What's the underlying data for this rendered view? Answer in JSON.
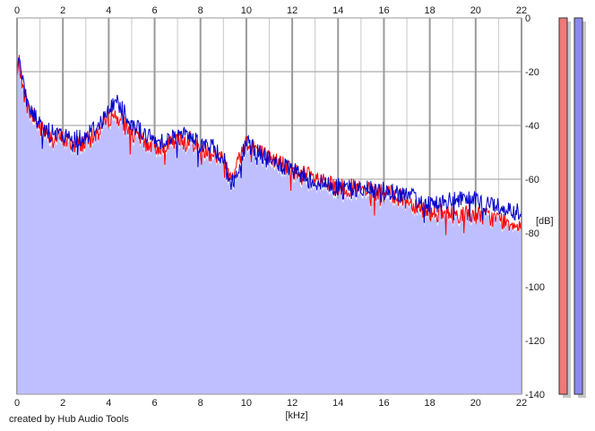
{
  "credit": "created by Hub Audio Tools",
  "chart_data": {
    "type": "line",
    "title": "",
    "xlabel": "[kHz]",
    "ylabel": "[dB]",
    "xlim": [
      0,
      22
    ],
    "ylim": [
      -140,
      0
    ],
    "xticks": [
      0,
      2,
      4,
      6,
      8,
      10,
      12,
      14,
      16,
      18,
      20,
      22
    ],
    "yticks": [
      0,
      -20,
      -40,
      -60,
      -80,
      -100,
      -120,
      -140
    ],
    "ytick_labels": [
      "0",
      "-20",
      "-40",
      "-60",
      "-80",
      "-100",
      "-120",
      "-140"
    ],
    "grid": true,
    "colors": {
      "background": "#ffffff",
      "grid_major": "#9a9a9a",
      "grid_minor": "#c8c8c8",
      "fill": "#bfbfff",
      "series_a": "#ff0000",
      "series_b": "#0000cc",
      "meter_a": "#ee7a7a",
      "meter_b": "#8a8aee"
    },
    "series": [
      {
        "color": "#ff0000",
        "x": [
          0,
          0.1,
          0.2,
          0.3,
          0.5,
          0.8,
          1.0,
          1.5,
          2.0,
          2.5,
          3.0,
          3.5,
          4.0,
          4.2,
          4.4,
          4.7,
          5.0,
          5.5,
          6.0,
          6.5,
          7.0,
          7.5,
          8.0,
          8.5,
          9.0,
          9.3,
          9.5,
          9.8,
          10.0,
          10.3,
          10.6,
          11.0,
          11.5,
          12.0,
          12.5,
          13.0,
          13.5,
          14.0,
          14.5,
          15.0,
          15.5,
          16.0,
          16.5,
          17.0,
          17.5,
          18.0,
          18.5,
          19.0,
          19.5,
          20.0,
          20.5,
          21.0,
          21.5,
          22.0
        ],
        "y": [
          -22,
          -16,
          -24,
          -28,
          -34,
          -38,
          -41,
          -44,
          -45,
          -47,
          -46,
          -43,
          -37,
          -36,
          -37,
          -40,
          -43,
          -46,
          -48,
          -47,
          -46,
          -45,
          -49,
          -50,
          -53,
          -58,
          -56,
          -50,
          -46,
          -47,
          -50,
          -52,
          -54,
          -57,
          -58,
          -60,
          -62,
          -63,
          -63,
          -64,
          -65,
          -65,
          -66,
          -68,
          -70,
          -72,
          -73,
          -73,
          -73,
          -73,
          -74,
          -75,
          -76,
          -77
        ]
      },
      {
        "color": "#0000cc",
        "x": [
          0,
          0.1,
          0.2,
          0.3,
          0.5,
          0.8,
          1.0,
          1.5,
          2.0,
          2.5,
          3.0,
          3.5,
          4.0,
          4.2,
          4.4,
          4.7,
          5.0,
          5.5,
          6.0,
          6.5,
          7.0,
          7.5,
          8.0,
          8.5,
          9.0,
          9.3,
          9.5,
          9.8,
          10.0,
          10.3,
          10.6,
          11.0,
          11.5,
          12.0,
          12.5,
          13.0,
          13.5,
          14.0,
          14.5,
          15.0,
          15.5,
          16.0,
          16.5,
          17.0,
          17.5,
          18.0,
          18.5,
          19.0,
          19.5,
          20.0,
          20.5,
          21.0,
          21.5,
          22.0
        ],
        "y": [
          -20,
          -14,
          -22,
          -27,
          -33,
          -37,
          -40,
          -43,
          -44,
          -45,
          -44,
          -40,
          -35,
          -32,
          -31,
          -35,
          -39,
          -43,
          -46,
          -45,
          -44,
          -43,
          -47,
          -48,
          -52,
          -62,
          -60,
          -52,
          -47,
          -48,
          -51,
          -53,
          -55,
          -57,
          -59,
          -61,
          -62,
          -63,
          -63,
          -64,
          -64,
          -64,
          -65,
          -66,
          -68,
          -69,
          -69,
          -68,
          -68,
          -68,
          -69,
          -70,
          -71,
          -73
        ]
      }
    ]
  }
}
